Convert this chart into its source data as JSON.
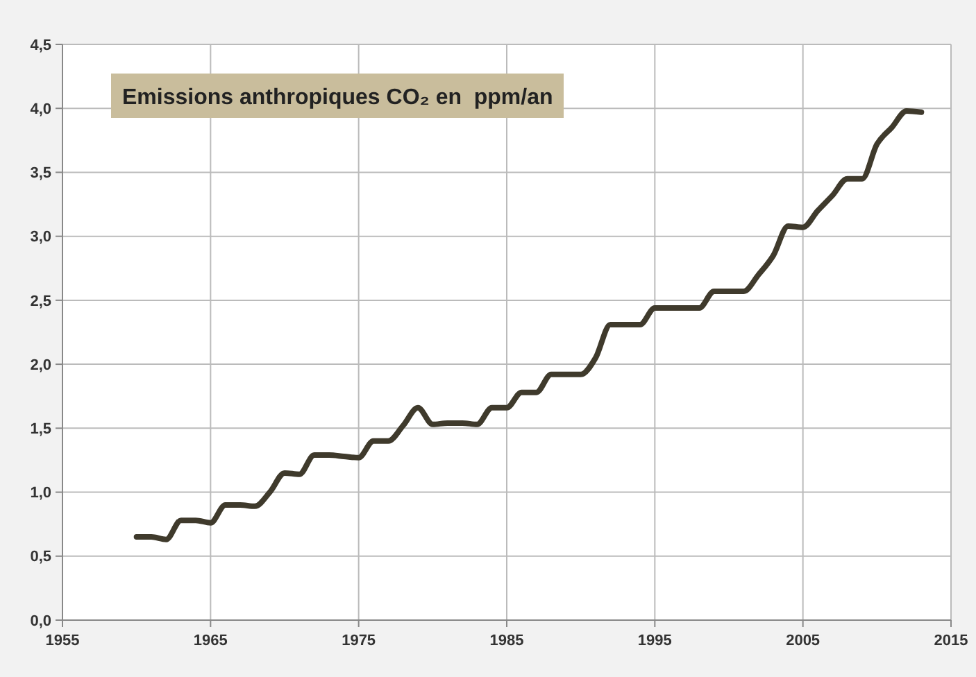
{
  "chart_data": {
    "type": "line",
    "title": "Emissions anthropiques CO₂ en  ppm/an",
    "x": [
      1960,
      1961,
      1962,
      1963,
      1964,
      1965,
      1966,
      1967,
      1968,
      1969,
      1970,
      1971,
      1972,
      1973,
      1974,
      1975,
      1976,
      1977,
      1978,
      1979,
      1980,
      1981,
      1982,
      1983,
      1984,
      1985,
      1986,
      1987,
      1988,
      1989,
      1990,
      1991,
      1992,
      1993,
      1994,
      1995,
      1996,
      1997,
      1998,
      1999,
      2000,
      2001,
      2002,
      2003,
      2004,
      2005,
      2006,
      2007,
      2008,
      2009,
      2010,
      2011,
      2012,
      2013
    ],
    "series": [
      {
        "color": "#3f3a2c",
        "values": [
          0.65,
          0.65,
          0.63,
          0.78,
          0.78,
          0.76,
          0.9,
          0.9,
          0.89,
          1.0,
          1.15,
          1.14,
          1.29,
          1.29,
          1.28,
          1.27,
          1.4,
          1.4,
          1.52,
          1.66,
          1.53,
          1.54,
          1.54,
          1.53,
          1.66,
          1.66,
          1.78,
          1.78,
          1.92,
          1.92,
          1.92,
          2.05,
          2.31,
          2.31,
          2.31,
          2.44,
          2.44,
          2.44,
          2.44,
          2.57,
          2.57,
          2.57,
          2.7,
          2.85,
          3.08,
          3.07,
          3.2,
          3.32,
          3.45,
          3.45,
          3.72,
          3.85,
          3.98,
          3.97
        ]
      }
    ],
    "xlim": [
      1955,
      2015
    ],
    "xticks": [
      1955,
      1965,
      1975,
      1985,
      1995,
      2005,
      2015
    ],
    "ylim": [
      0,
      4.5
    ],
    "yticks": [
      {
        "value": 0,
        "label": "0,0"
      },
      {
        "value": 0.5,
        "label": "0,5"
      },
      {
        "value": 1,
        "label": "1,0"
      },
      {
        "value": 1.5,
        "label": "1,5"
      },
      {
        "value": 2,
        "label": "2,0"
      },
      {
        "value": 2.5,
        "label": "2,5"
      },
      {
        "value": 3,
        "label": "3,0"
      },
      {
        "value": 3.5,
        "label": "3,5"
      },
      {
        "value": 4,
        "label": "4,0"
      },
      {
        "value": 4.5,
        "label": "4,5"
      }
    ],
    "grid": true,
    "line_style": "solid",
    "marker": "none"
  }
}
